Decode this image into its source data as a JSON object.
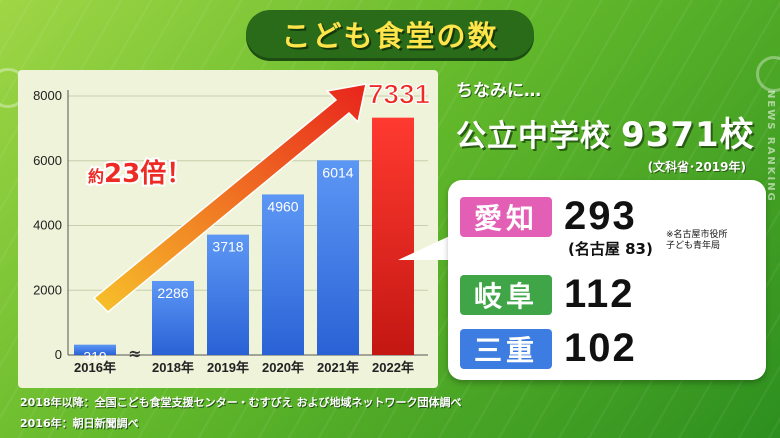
{
  "title": "こども食堂の数",
  "watermark": "NEWS RANKING",
  "aside": {
    "lead": "ちなみに…",
    "label": "公立中学校",
    "value": "9371校",
    "source": "(文科省･2019年)"
  },
  "prefectures": [
    {
      "name": "愛知",
      "value": "293",
      "sub": "(名古屋 83)",
      "note_line1": "※名古屋市役所",
      "note_line2": "子ども青年局",
      "color": "#e35fb5"
    },
    {
      "name": "岐阜",
      "value": "112",
      "color": "#3fa546"
    },
    {
      "name": "三重",
      "value": "102",
      "color": "#3d7ce0"
    }
  ],
  "sources": [
    "2018年以降：全国こども食堂支援センター・むすびえ および地域ネットワーク団体調べ",
    "2016年：朝日新聞調べ"
  ],
  "chart_data": {
    "type": "bar",
    "categories": [
      "2016年",
      "2018年",
      "2019年",
      "2020年",
      "2021年",
      "2022年"
    ],
    "values": [
      319,
      2286,
      3718,
      4960,
      6014,
      7331
    ],
    "ylim": [
      0,
      8000
    ],
    "yticks": [
      0,
      2000,
      4000,
      6000,
      8000
    ],
    "bar_color": "#3f7ee8",
    "highlight_color": "#ee2a24",
    "highlight_label_color": "#ee2a24",
    "annotation": {
      "prefix": "約",
      "text": "23倍！",
      "color": "#ee2a24"
    },
    "axis_break": "≈",
    "grid": true,
    "xlabel": "",
    "ylabel": ""
  }
}
